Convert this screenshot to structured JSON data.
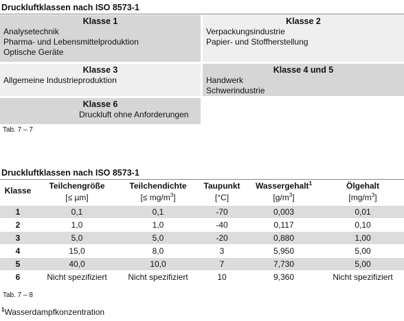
{
  "section1": {
    "title": "Druckluftklassen nach ISO 8573-1",
    "boxes": [
      {
        "heading": "Klasse 1",
        "lines": [
          "Analysetechnik",
          "Pharma- und Lebensmittelproduktion",
          "Optische Geräte"
        ]
      },
      {
        "heading": "Klasse 2",
        "lines": [
          "Verpackungsindustrie",
          "Papier- und Stoffherstellung"
        ]
      },
      {
        "heading": "Klasse 3",
        "lines": [
          "Allgemeine Industrieproduktion"
        ]
      },
      {
        "heading": "Klasse 4 und 5",
        "lines": [
          "Handwerk",
          "Schwerindustrie"
        ]
      },
      {
        "heading": "Klasse 6",
        "lines": [
          "Druckluft ohne Anforderungen"
        ]
      }
    ],
    "caption": "Tab. 7 – 7"
  },
  "section2": {
    "title": "Druckluftklassen nach ISO 8573-1",
    "headers": [
      {
        "name": "Klasse"
      },
      {
        "name": "Teilchengröße",
        "unit": "[≤ µm]"
      },
      {
        "name": "Teilchendichte",
        "unit": "[≤ mg/m",
        "unit_sup": "3",
        "unit_end": "]"
      },
      {
        "name": "Taupunkt",
        "unit": "[°C]"
      },
      {
        "name": "Wassergehalt",
        "name_sup": "1",
        "unit": "[g/m",
        "unit_sup": "3",
        "unit_end": "]"
      },
      {
        "name": "Ölgehalt",
        "unit": "[mg/m",
        "unit_sup": "3",
        "unit_end": "]"
      }
    ],
    "rows": [
      [
        "1",
        "0,1",
        "0,1",
        "-70",
        "0,003",
        "0,01"
      ],
      [
        "2",
        "1,0",
        "1,0",
        "-40",
        "0,117",
        "0,10"
      ],
      [
        "3",
        "5,0",
        "5,0",
        "-20",
        "0,880",
        "1,00"
      ],
      [
        "4",
        "15,0",
        "8,0",
        "3",
        "5,950",
        "5,00"
      ],
      [
        "5",
        "40,0",
        "10,0",
        "7",
        "7,730",
        "5,00"
      ],
      [
        "6",
        "Nicht spezifiziert",
        "Nicht spezifiziert",
        "10",
        "9,360",
        "Nicht spezifiziert"
      ]
    ],
    "caption": "Tab. 7 – 8",
    "footnote": {
      "mark": "1",
      "text": "Wasserdampfkonzentration"
    }
  }
}
